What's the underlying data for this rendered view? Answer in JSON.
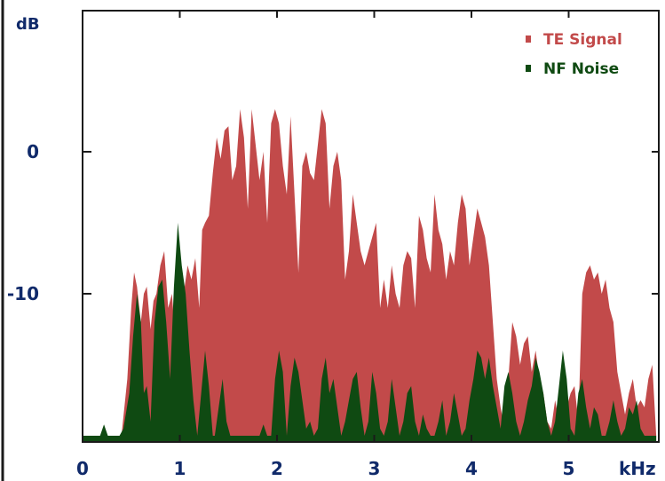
{
  "chart_data": {
    "type": "area",
    "ylabel": "dB",
    "xunit": "kHz",
    "xlim": [
      0,
      6
    ],
    "ylim": [
      -20,
      5
    ],
    "x_ticks": [
      0,
      1,
      2,
      3,
      4,
      5
    ],
    "x_tick_labels": [
      "0",
      "1",
      "2",
      "3",
      "4",
      "5"
    ],
    "y_ticks": [
      0,
      -10
    ],
    "y_tick_labels": [
      "0",
      "-10"
    ],
    "legend_position": "top-right",
    "grid": false,
    "series": [
      {
        "name": "TE Signal",
        "color": "#c24a4a",
        "x": [
          0.4,
          0.46,
          0.5,
          0.53,
          0.56,
          0.6,
          0.63,
          0.66,
          0.7,
          0.73,
          0.76,
          0.8,
          0.84,
          0.86,
          0.88,
          0.92,
          0.96,
          1.0,
          1.04,
          1.08,
          1.12,
          1.16,
          1.2,
          1.23,
          1.26,
          1.3,
          1.34,
          1.38,
          1.42,
          1.46,
          1.5,
          1.54,
          1.58,
          1.62,
          1.66,
          1.7,
          1.74,
          1.78,
          1.82,
          1.86,
          1.9,
          1.94,
          1.98,
          2.02,
          2.06,
          2.1,
          2.14,
          2.18,
          2.22,
          2.26,
          2.3,
          2.34,
          2.38,
          2.42,
          2.46,
          2.5,
          2.54,
          2.58,
          2.62,
          2.66,
          2.7,
          2.74,
          2.78,
          2.82,
          2.86,
          2.9,
          2.94,
          2.98,
          3.02,
          3.06,
          3.1,
          3.14,
          3.18,
          3.22,
          3.26,
          3.3,
          3.34,
          3.38,
          3.42,
          3.46,
          3.5,
          3.54,
          3.58,
          3.62,
          3.66,
          3.7,
          3.74,
          3.78,
          3.82,
          3.86,
          3.9,
          3.94,
          3.98,
          4.02,
          4.06,
          4.1,
          4.14,
          4.18,
          4.22,
          4.26,
          4.3,
          4.34,
          4.38,
          4.42,
          4.46,
          4.5,
          4.54,
          4.58,
          4.62,
          4.66,
          4.7,
          4.74,
          4.78,
          4.82,
          4.86,
          4.9,
          4.94,
          4.98,
          5.02,
          5.06,
          5.1,
          5.14,
          5.18,
          5.22,
          5.26,
          5.3,
          5.34,
          5.38,
          5.42,
          5.46,
          5.5,
          5.54,
          5.58,
          5.62,
          5.66,
          5.7,
          5.74,
          5.78,
          5.82,
          5.86,
          5.9
        ],
        "values": [
          -20,
          -16,
          -11,
          -8.5,
          -9.5,
          -12,
          -10,
          -9.5,
          -12.5,
          -10.5,
          -10.0,
          -8.0,
          -7.0,
          -9.0,
          -11.0,
          -10.0,
          -14.0,
          -19.0,
          -10.0,
          -8.0,
          -9.0,
          -7.5,
          -11.0,
          -5.5,
          -5.0,
          -4.5,
          -1.5,
          1.0,
          -0.5,
          1.5,
          1.8,
          -2.0,
          -1.0,
          3.0,
          1.0,
          -4.0,
          3.0,
          0.5,
          -2.0,
          0.0,
          -5.0,
          2.0,
          3.0,
          2.0,
          -1.0,
          -3.0,
          2.5,
          -3.0,
          -8.5,
          -1.0,
          0.0,
          -1.5,
          -2.0,
          0.5,
          3.0,
          2.0,
          -4.0,
          -1.0,
          0.0,
          -2.0,
          -9.0,
          -7.0,
          -3.0,
          -5.0,
          -7.0,
          -8.0,
          -7.0,
          -6.0,
          -5.0,
          -11.0,
          -9.0,
          -11.0,
          -8.0,
          -10.0,
          -11.0,
          -8.0,
          -7.0,
          -7.5,
          -11.0,
          -4.5,
          -5.5,
          -7.5,
          -8.5,
          -3.0,
          -5.5,
          -6.5,
          -9.0,
          -7.0,
          -8.0,
          -5.0,
          -3.0,
          -4.0,
          -8.0,
          -6.0,
          -4.0,
          -5.0,
          -6.0,
          -8.0,
          -12.0,
          -16.0,
          -18.0,
          -19.5,
          -16.0,
          -12.0,
          -13.0,
          -15.0,
          -13.5,
          -13.0,
          -15.5,
          -14.0,
          -16.0,
          -17.0,
          -19.0,
          -19.5,
          -17.5,
          -19.0,
          -18.0,
          -18.0,
          -17.0,
          -16.5,
          -19.0,
          -10.0,
          -8.5,
          -8.0,
          -9.0,
          -8.5,
          -10.0,
          -9.0,
          -11.0,
          -12.0,
          -15.5,
          -17.0,
          -18.5,
          -17.0,
          -16.0,
          -18.0,
          -17.5,
          -18.0,
          -16.0,
          -15.0,
          -20.0
        ]
      },
      {
        "name": "NF Noise",
        "color": "#0f4a12",
        "x": [
          0.0,
          0.18,
          0.22,
          0.26,
          0.3,
          0.38,
          0.42,
          0.48,
          0.52,
          0.56,
          0.6,
          0.63,
          0.66,
          0.7,
          0.74,
          0.78,
          0.82,
          0.86,
          0.9,
          0.94,
          0.98,
          1.02,
          1.06,
          1.1,
          1.14,
          1.18,
          1.22,
          1.26,
          1.3,
          1.34,
          1.36,
          1.4,
          1.44,
          1.48,
          1.52,
          1.56,
          1.58,
          1.62,
          1.7,
          1.78,
          1.82,
          1.86,
          1.9,
          1.94,
          1.98,
          2.02,
          2.06,
          2.1,
          2.14,
          2.18,
          2.22,
          2.26,
          2.3,
          2.34,
          2.38,
          2.42,
          2.46,
          2.5,
          2.54,
          2.58,
          2.62,
          2.66,
          2.7,
          2.74,
          2.78,
          2.82,
          2.86,
          2.9,
          2.94,
          2.98,
          3.02,
          3.06,
          3.1,
          3.14,
          3.18,
          3.22,
          3.26,
          3.3,
          3.34,
          3.38,
          3.42,
          3.46,
          3.5,
          3.54,
          3.58,
          3.62,
          3.66,
          3.7,
          3.74,
          3.78,
          3.82,
          3.86,
          3.9,
          3.94,
          3.98,
          4.02,
          4.06,
          4.1,
          4.14,
          4.18,
          4.22,
          4.26,
          4.3,
          4.34,
          4.38,
          4.42,
          4.46,
          4.5,
          4.54,
          4.58,
          4.62,
          4.66,
          4.7,
          4.74,
          4.78,
          4.82,
          4.86,
          4.9,
          4.94,
          4.98,
          5.02,
          5.06,
          5.1,
          5.14,
          5.18,
          5.22,
          5.26,
          5.3,
          5.34,
          5.38,
          5.42,
          5.46,
          5.5,
          5.54,
          5.58,
          5.62,
          5.66,
          5.7,
          5.74,
          5.78,
          5.82,
          5.86,
          5.9
        ],
        "values": [
          -20,
          -20,
          -19.2,
          -20,
          -20,
          -20,
          -19.5,
          -17.0,
          -13.0,
          -10.0,
          -12.0,
          -17.0,
          -16.5,
          -19.0,
          -12.0,
          -9.5,
          -9.0,
          -12.0,
          -16.0,
          -9.5,
          -5.0,
          -8.0,
          -10.0,
          -14.0,
          -17.5,
          -20.0,
          -17.0,
          -14.0,
          -16.5,
          -20.0,
          -20.0,
          -18.0,
          -16.0,
          -19.0,
          -20.0,
          -20.0,
          -20.0,
          -20.0,
          -20.0,
          -20.0,
          -20.0,
          -19.2,
          -20.0,
          -20.0,
          -16.0,
          -14.0,
          -15.5,
          -20.0,
          -16.5,
          -14.5,
          -15.5,
          -17.5,
          -19.5,
          -19.0,
          -20.0,
          -19.5,
          -16.0,
          -14.5,
          -17.0,
          -16.0,
          -18.0,
          -20.0,
          -19.0,
          -17.5,
          -16.0,
          -15.5,
          -18.0,
          -20.0,
          -19.0,
          -15.5,
          -17.0,
          -19.5,
          -20.0,
          -19.0,
          -16.0,
          -18.0,
          -20.0,
          -19.0,
          -17.0,
          -16.5,
          -19.0,
          -20.0,
          -18.5,
          -19.5,
          -20.0,
          -20.0,
          -19.0,
          -17.5,
          -20.0,
          -19.0,
          -17.0,
          -18.5,
          -20.0,
          -19.5,
          -17.5,
          -16.0,
          -14.0,
          -14.5,
          -16.0,
          -14.5,
          -16.5,
          -18.0,
          -19.5,
          -16.5,
          -15.5,
          -17.0,
          -19.0,
          -20.0,
          -19.0,
          -17.5,
          -16.5,
          -14.5,
          -15.5,
          -17.0,
          -19.0,
          -20.0,
          -19.0,
          -16.5,
          -14.0,
          -16.0,
          -19.5,
          -20.0,
          -17.0,
          -16.0,
          -18.0,
          -19.5,
          -18.0,
          -18.5,
          -20.0,
          -20.0,
          -19.0,
          -17.5,
          -19.0,
          -20.0,
          -19.5,
          -18.0,
          -18.5,
          -17.5,
          -19.5,
          -20.0,
          -20.0,
          -20.0,
          -20.0
        ]
      }
    ]
  }
}
